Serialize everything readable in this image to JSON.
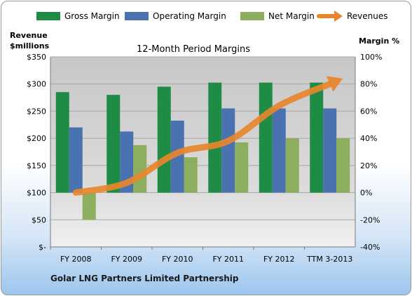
{
  "chart_data": {
    "type": "bar",
    "title": "12-Month Period Margins",
    "footer": "Golar LNG Partners Limited Partnership",
    "left_axis_label": [
      "Revenue",
      "$millions"
    ],
    "right_axis_label": "Margin %",
    "categories": [
      "FY 2008",
      "FY 2009",
      "FY 2010",
      "FY 2011",
      "FY 2012",
      "TTM 3-2013"
    ],
    "y_left_ticks": [
      "$-",
      "$50",
      "$100",
      "$150",
      "$200",
      "$250",
      "$300",
      "$350"
    ],
    "y_right_ticks": [
      "-40%",
      "-20%",
      "0%",
      "20%",
      "40%",
      "60%",
      "80%",
      "100%"
    ],
    "ylim_revenue": [
      0,
      350
    ],
    "ylim_margin_percent": [
      -40,
      100
    ],
    "grid": true,
    "legend_position": "top",
    "series": [
      {
        "name": "Gross Margin",
        "type": "bar",
        "axis": "right",
        "color": "#1e8c45",
        "values": [
          74,
          72,
          78,
          81,
          81,
          81
        ]
      },
      {
        "name": "Operating Margin",
        "type": "bar",
        "axis": "right",
        "color": "#4a71b0",
        "values": [
          48,
          45,
          53,
          62,
          62,
          62
        ]
      },
      {
        "name": "Net Margin",
        "type": "bar",
        "axis": "right",
        "color": "#8cae5e",
        "values": [
          -20,
          35,
          26,
          37,
          40,
          40
        ]
      },
      {
        "name": "Revenues",
        "type": "line",
        "axis": "left",
        "color": "#e8852c",
        "values": [
          100,
          118,
          173,
          195,
          260,
          300
        ]
      }
    ]
  }
}
